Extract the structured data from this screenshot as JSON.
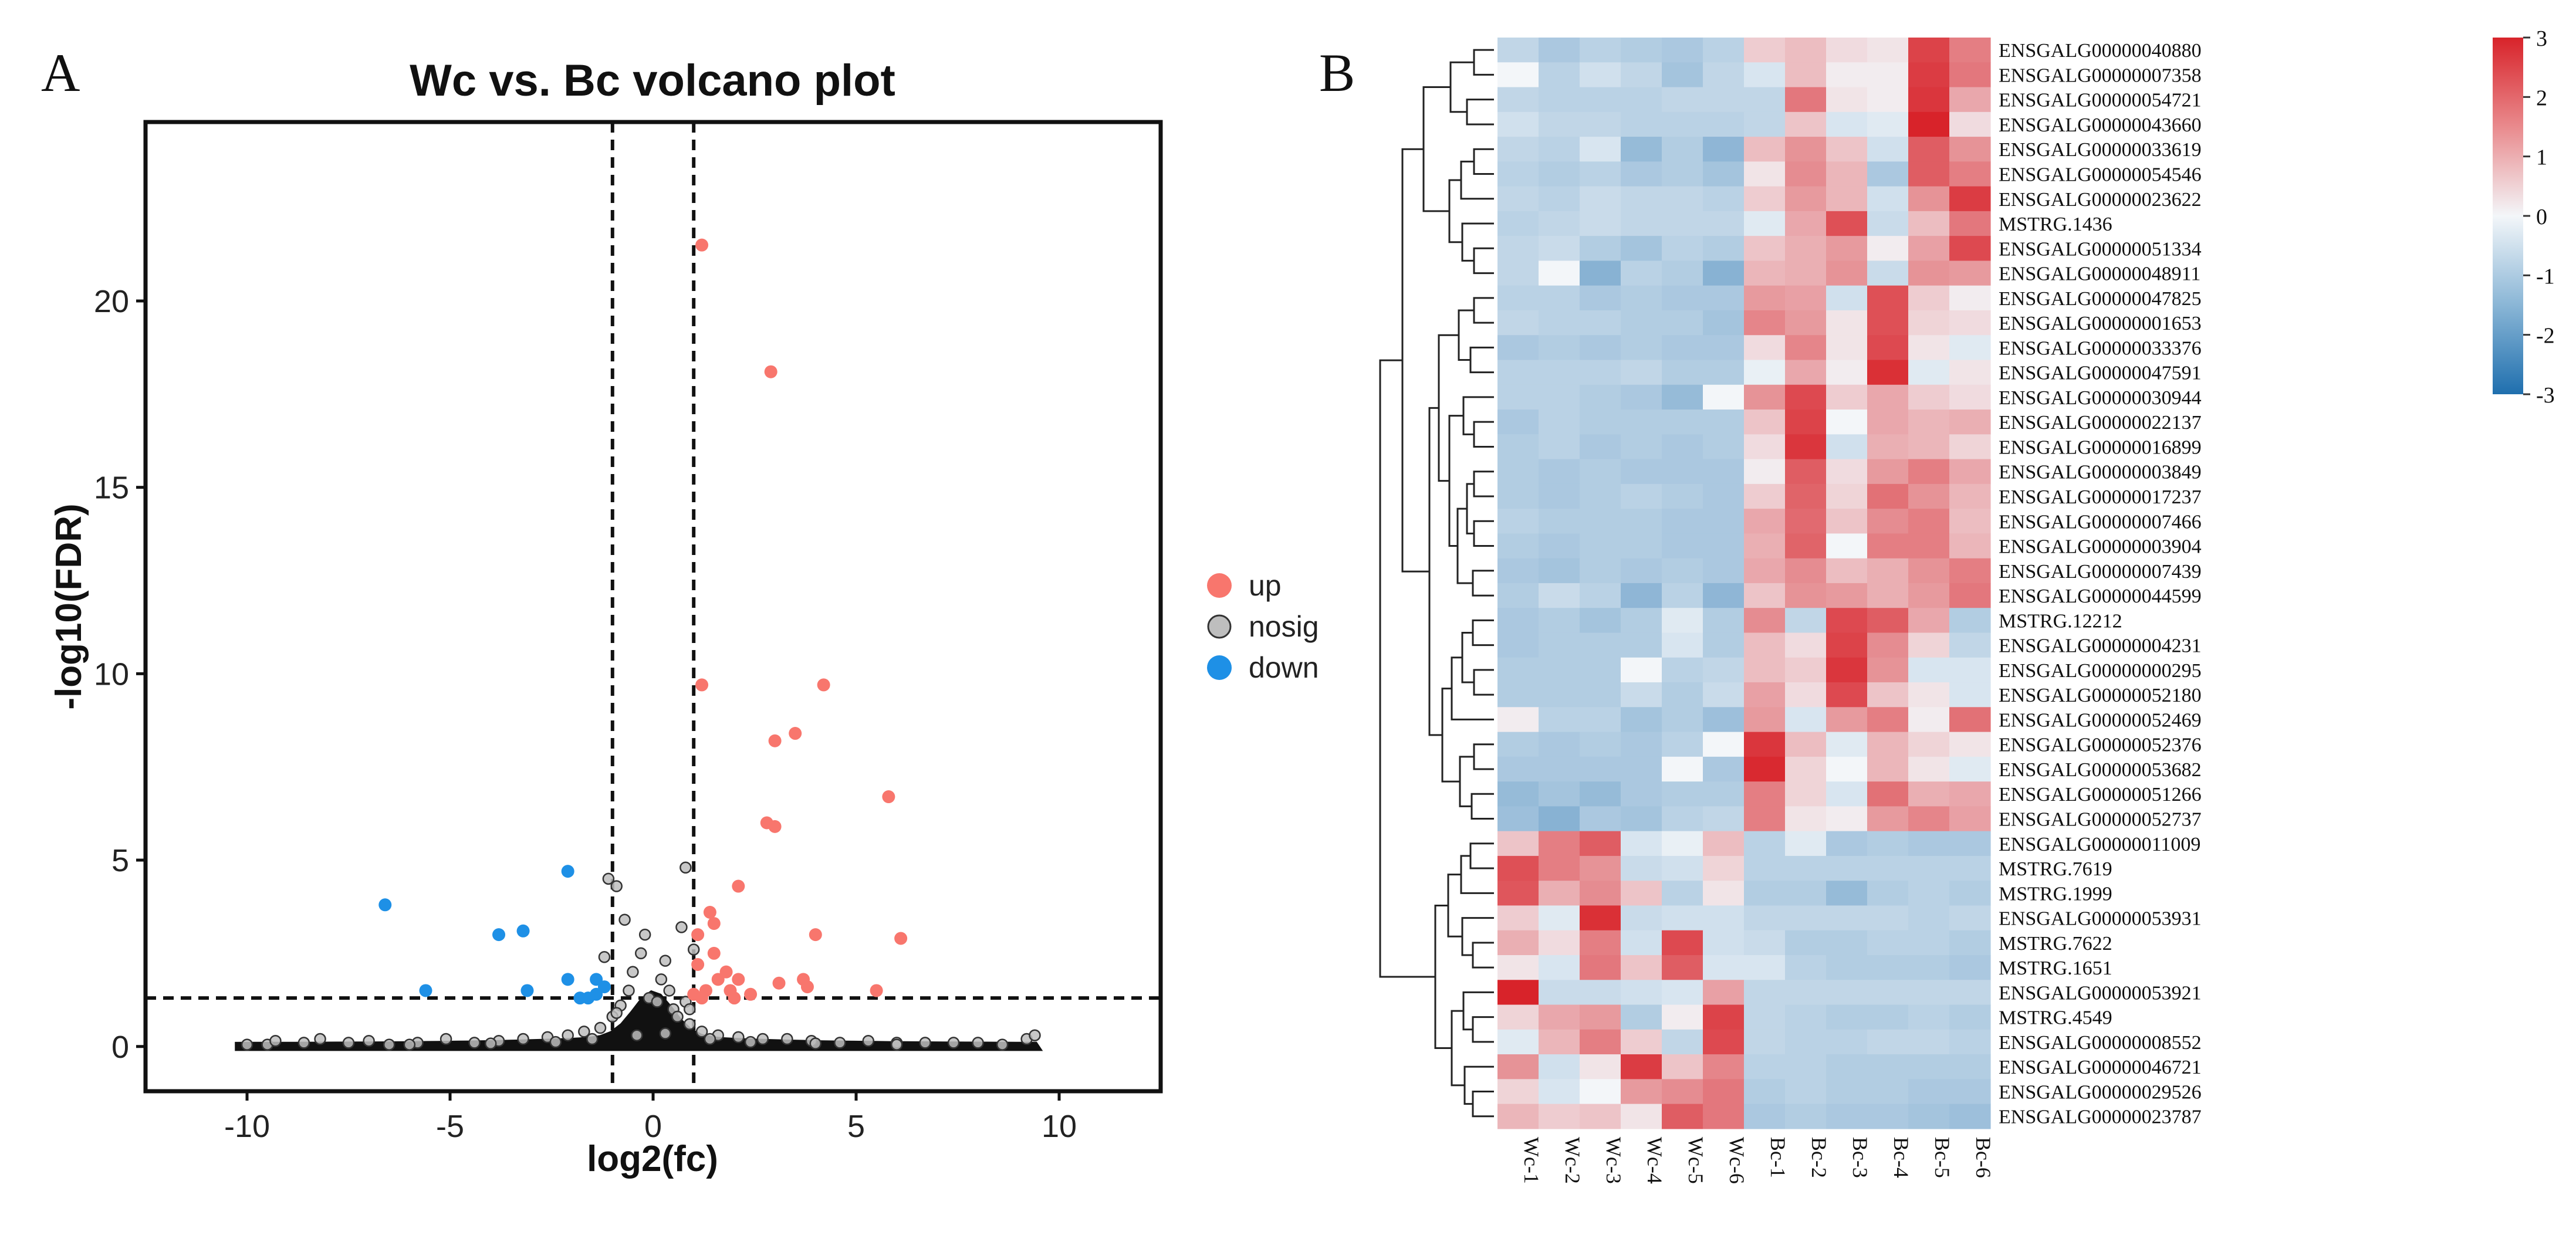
{
  "chart_data": [
    {
      "panel_label": "A",
      "type": "scatter",
      "title": "Wc vs. Bc volcano plot",
      "xlabel": "log2(fc)",
      "ylabel": "-log10(FDR)",
      "xlim": [
        -12.5,
        12.5
      ],
      "ylim": [
        -1.2,
        24.8
      ],
      "x_ticks": [
        -10,
        -5,
        0,
        5,
        10
      ],
      "x_tick_labels": [
        "-10",
        "-5",
        "0",
        "5",
        "10"
      ],
      "y_ticks": [
        0,
        5,
        10,
        15,
        20
      ],
      "y_tick_labels": [
        "0",
        "5",
        "10",
        "15",
        "20"
      ],
      "thresholds": {
        "log2fc": [
          -1,
          1
        ],
        "neg_log10_fdr": 1.3
      },
      "legend": {
        "position": "right",
        "entries": [
          {
            "key": "up",
            "label": "up",
            "color": "#F8766D"
          },
          {
            "key": "nosig",
            "label": "nosig",
            "color": "#BEBEBE"
          },
          {
            "key": "down",
            "label": "down",
            "color": "#1E90E6"
          }
        ]
      },
      "series": [
        {
          "name": "up",
          "color": "#F8766D",
          "points": [
            [
              1.2,
              21.5
            ],
            [
              2.9,
              18.1
            ],
            [
              1.2,
              9.7
            ],
            [
              4.2,
              9.7
            ],
            [
              3.5,
              8.4
            ],
            [
              3.0,
              8.2
            ],
            [
              5.8,
              6.7
            ],
            [
              2.8,
              6.0
            ],
            [
              3.0,
              5.9
            ],
            [
              2.1,
              4.3
            ],
            [
              1.4,
              3.6
            ],
            [
              1.5,
              3.3
            ],
            [
              1.1,
              3.0
            ],
            [
              4.0,
              3.0
            ],
            [
              6.1,
              2.9
            ],
            [
              1.5,
              2.5
            ],
            [
              1.1,
              2.2
            ],
            [
              1.8,
              2.0
            ],
            [
              3.7,
              1.8
            ],
            [
              3.8,
              1.6
            ],
            [
              3.1,
              1.7
            ],
            [
              2.1,
              1.8
            ],
            [
              1.6,
              1.8
            ],
            [
              1.3,
              1.5
            ],
            [
              5.5,
              1.5
            ],
            [
              1.9,
              1.5
            ],
            [
              1.2,
              1.3
            ],
            [
              2.4,
              1.4
            ],
            [
              2.0,
              1.3
            ],
            [
              1.0,
              1.4
            ]
          ]
        },
        {
          "name": "down",
          "color": "#1E90E6",
          "points": [
            [
              -6.6,
              3.8
            ],
            [
              -3.2,
              3.1
            ],
            [
              -3.8,
              3.0
            ],
            [
              -2.1,
              4.7
            ],
            [
              -5.6,
              1.5
            ],
            [
              -3.1,
              1.5
            ],
            [
              -2.1,
              1.8
            ],
            [
              -1.4,
              1.8
            ],
            [
              -1.6,
              1.3
            ],
            [
              -1.4,
              1.4
            ],
            [
              -1.8,
              1.3
            ],
            [
              -1.2,
              1.6
            ]
          ]
        },
        {
          "name": "nosig",
          "color": "#BEBEBE",
          "points": [
            [
              -10.0,
              0.05
            ],
            [
              -9.5,
              0.05
            ],
            [
              -9.3,
              0.15
            ],
            [
              -8.6,
              0.1
            ],
            [
              -8.2,
              0.2
            ],
            [
              -7.5,
              0.1
            ],
            [
              -7.0,
              0.15
            ],
            [
              -6.5,
              0.05
            ],
            [
              -5.8,
              0.1
            ],
            [
              -5.1,
              0.2
            ],
            [
              -4.4,
              0.1
            ],
            [
              -3.8,
              0.15
            ],
            [
              -3.2,
              0.2
            ],
            [
              -2.6,
              0.25
            ],
            [
              -2.1,
              0.3
            ],
            [
              -1.7,
              0.4
            ],
            [
              -1.3,
              0.5
            ],
            [
              -1.0,
              0.8
            ],
            [
              -0.8,
              1.1
            ],
            [
              -0.6,
              1.5
            ],
            [
              -0.5,
              2.0
            ],
            [
              -0.3,
              2.5
            ],
            [
              -0.2,
              3.0
            ],
            [
              -0.1,
              1.3
            ],
            [
              0.1,
              1.2
            ],
            [
              0.2,
              1.8
            ],
            [
              0.3,
              2.3
            ],
            [
              0.4,
              1.5
            ],
            [
              0.5,
              1.0
            ],
            [
              0.6,
              0.8
            ],
            [
              0.8,
              1.2
            ],
            [
              0.9,
              0.6
            ],
            [
              1.2,
              0.4
            ],
            [
              1.6,
              0.3
            ],
            [
              2.1,
              0.25
            ],
            [
              2.7,
              0.2
            ],
            [
              3.3,
              0.2
            ],
            [
              3.9,
              0.15
            ],
            [
              4.6,
              0.1
            ],
            [
              5.3,
              0.15
            ],
            [
              6.0,
              0.1
            ],
            [
              6.7,
              0.1
            ],
            [
              7.4,
              0.1
            ],
            [
              8.0,
              0.1
            ],
            [
              8.6,
              0.05
            ],
            [
              9.2,
              0.2
            ],
            [
              9.4,
              0.3
            ],
            [
              -1.1,
              4.5
            ],
            [
              -0.9,
              4.3
            ],
            [
              0.8,
              4.8
            ],
            [
              -0.7,
              3.4
            ],
            [
              0.7,
              3.2
            ],
            [
              -1.2,
              2.4
            ],
            [
              1.0,
              2.6
            ],
            [
              -0.4,
              0.3
            ],
            [
              0.3,
              0.35
            ],
            [
              -1.5,
              0.2
            ],
            [
              1.4,
              0.2
            ],
            [
              -2.4,
              0.12
            ],
            [
              2.4,
              0.12
            ],
            [
              -4.0,
              0.08
            ],
            [
              4.0,
              0.08
            ],
            [
              -6.0,
              0.05
            ],
            [
              6.0,
              0.05
            ],
            [
              -0.9,
              0.9
            ],
            [
              0.9,
              1.0
            ]
          ]
        }
      ]
    },
    {
      "panel_label": "B",
      "type": "heatmap",
      "columns": [
        "Wc-1",
        "Wc-2",
        "Wc-3",
        "Wc-4",
        "Wc-5",
        "Wc-6",
        "Bc-1",
        "Bc-2",
        "Bc-3",
        "Bc-4",
        "Bc-5",
        "Bc-6"
      ],
      "rows": [
        "ENSGALG00000040880",
        "ENSGALG00000007358",
        "ENSGALG00000054721",
        "ENSGALG00000043660",
        "ENSGALG00000033619",
        "ENSGALG00000054546",
        "ENSGALG00000023622",
        "MSTRG.1436",
        "ENSGALG00000051334",
        "ENSGALG00000048911",
        "ENSGALG00000047825",
        "ENSGALG00000001653",
        "ENSGALG00000033376",
        "ENSGALG00000047591",
        "ENSGALG00000030944",
        "ENSGALG00000022137",
        "ENSGALG00000016899",
        "ENSGALG00000003849",
        "ENSGALG00000017237",
        "ENSGALG00000007466",
        "ENSGALG00000003904",
        "ENSGALG00000007439",
        "ENSGALG00000044599",
        "MSTRG.12212",
        "ENSGALG00000004231",
        "ENSGALG00000000295",
        "ENSGALG00000052180",
        "ENSGALG00000052469",
        "ENSGALG00000052376",
        "ENSGALG00000053682",
        "ENSGALG00000051266",
        "ENSGALG00000052737",
        "ENSGALG00000011009",
        "MSTRG.7619",
        "MSTRG.1999",
        "ENSGALG00000053931",
        "MSTRG.7622",
        "MSTRG.1651",
        "ENSGALG00000053921",
        "MSTRG.4549",
        "ENSGALG00000008552",
        "ENSGALG00000046721",
        "ENSGALG00000029526",
        "ENSGALG00000023787"
      ],
      "values": [
        [
          -0.6,
          -0.9,
          -0.7,
          -0.8,
          -0.9,
          -0.7,
          0.5,
          0.7,
          0.3,
          0.2,
          2.5,
          1.6
        ],
        [
          0.0,
          -0.7,
          -0.4,
          -0.6,
          -1.0,
          -0.6,
          -0.3,
          0.7,
          0.1,
          0.1,
          2.6,
          1.7
        ],
        [
          -0.6,
          -0.7,
          -0.7,
          -0.7,
          -0.6,
          -0.6,
          -0.6,
          1.7,
          0.2,
          0.1,
          2.7,
          1.0
        ],
        [
          -0.4,
          -0.6,
          -0.6,
          -0.7,
          -0.7,
          -0.7,
          -0.6,
          0.6,
          -0.3,
          -0.2,
          3.0,
          0.3
        ],
        [
          -0.6,
          -0.7,
          -0.3,
          -1.2,
          -0.8,
          -1.3,
          0.7,
          1.3,
          0.6,
          -0.4,
          2.1,
          1.3
        ],
        [
          -0.7,
          -0.8,
          -0.7,
          -0.9,
          -0.8,
          -1.0,
          0.2,
          1.4,
          0.8,
          -0.9,
          2.1,
          1.6
        ],
        [
          -0.6,
          -0.7,
          -0.5,
          -0.6,
          -0.6,
          -0.7,
          0.5,
          1.2,
          0.8,
          -0.4,
          1.3,
          2.6
        ],
        [
          -0.7,
          -0.6,
          -0.5,
          -0.6,
          -0.6,
          -0.6,
          -0.2,
          1.0,
          2.3,
          -0.5,
          0.7,
          1.7
        ],
        [
          -0.6,
          -0.5,
          -0.8,
          -1.0,
          -0.7,
          -0.8,
          0.6,
          0.9,
          1.2,
          0.1,
          1.1,
          2.4
        ],
        [
          -0.6,
          0.0,
          -1.4,
          -0.7,
          -0.8,
          -1.4,
          0.8,
          0.9,
          1.3,
          -0.5,
          1.3,
          1.2
        ],
        [
          -0.7,
          -0.7,
          -0.9,
          -0.8,
          -0.9,
          -0.9,
          1.2,
          1.1,
          -0.4,
          2.3,
          0.5,
          0.1
        ],
        [
          -0.6,
          -0.7,
          -0.7,
          -0.8,
          -0.8,
          -1.0,
          1.5,
          1.2,
          0.2,
          2.3,
          0.4,
          0.3
        ],
        [
          -0.9,
          -0.8,
          -0.9,
          -0.8,
          -0.9,
          -0.9,
          0.3,
          1.5,
          0.2,
          2.4,
          0.2,
          -0.2
        ],
        [
          -0.7,
          -0.7,
          -0.7,
          -0.6,
          -0.8,
          -0.8,
          -0.1,
          1.0,
          0.1,
          2.8,
          -0.2,
          0.2
        ],
        [
          -0.7,
          -0.7,
          -0.8,
          -0.9,
          -1.2,
          0.0,
          1.3,
          2.4,
          0.5,
          1.0,
          0.5,
          0.3
        ],
        [
          -0.9,
          -0.7,
          -0.8,
          -0.8,
          -0.8,
          -0.8,
          0.6,
          2.5,
          0.0,
          1.0,
          0.8,
          0.9
        ],
        [
          -0.8,
          -0.7,
          -0.9,
          -0.8,
          -0.9,
          -0.8,
          0.3,
          2.7,
          -0.4,
          0.9,
          0.8,
          0.4
        ],
        [
          -0.8,
          -0.9,
          -0.8,
          -0.9,
          -0.9,
          -0.9,
          0.1,
          2.1,
          0.3,
          1.2,
          1.6,
          1.0
        ],
        [
          -0.8,
          -0.9,
          -0.8,
          -0.7,
          -0.8,
          -0.9,
          0.5,
          2.0,
          0.4,
          1.8,
          1.3,
          0.8
        ],
        [
          -0.7,
          -0.8,
          -0.8,
          -0.8,
          -0.9,
          -0.9,
          1.0,
          1.9,
          0.6,
          1.4,
          1.6,
          0.7
        ],
        [
          -0.8,
          -0.9,
          -0.8,
          -0.8,
          -0.9,
          -0.9,
          0.9,
          2.0,
          0.0,
          1.6,
          1.6,
          0.8
        ],
        [
          -0.9,
          -1.0,
          -0.8,
          -0.9,
          -0.8,
          -0.9,
          1.0,
          1.4,
          0.7,
          0.9,
          1.3,
          1.6
        ],
        [
          -0.8,
          -0.5,
          -0.7,
          -1.3,
          -0.7,
          -1.3,
          0.6,
          1.3,
          1.2,
          0.9,
          1.2,
          1.7
        ],
        [
          -0.9,
          -0.8,
          -1.0,
          -0.8,
          -0.2,
          -0.8,
          1.4,
          -0.6,
          2.4,
          2.1,
          1.0,
          -0.8
        ],
        [
          -0.9,
          -0.8,
          -0.8,
          -0.8,
          -0.3,
          -0.8,
          0.7,
          0.3,
          2.5,
          1.4,
          0.4,
          -0.6
        ],
        [
          -0.8,
          -0.8,
          -0.8,
          0.0,
          -0.7,
          -0.6,
          0.7,
          0.5,
          2.7,
          1.3,
          -0.3,
          -0.3
        ],
        [
          -0.8,
          -0.8,
          -0.8,
          -0.5,
          -0.8,
          -0.5,
          1.1,
          0.3,
          2.4,
          0.6,
          0.2,
          -0.3
        ],
        [
          0.1,
          -0.7,
          -0.7,
          -1.0,
          -0.8,
          -1.1,
          1.2,
          -0.3,
          1.2,
          1.6,
          0.1,
          1.8
        ],
        [
          -0.8,
          -0.9,
          -0.8,
          -0.9,
          -0.7,
          0.0,
          2.7,
          0.7,
          -0.2,
          0.8,
          0.4,
          0.2
        ],
        [
          -0.9,
          -0.9,
          -0.9,
          -0.9,
          0.0,
          -0.9,
          2.9,
          0.4,
          0.0,
          0.8,
          0.2,
          -0.2
        ],
        [
          -1.2,
          -1.0,
          -1.2,
          -0.9,
          -0.8,
          -0.8,
          1.6,
          0.4,
          -0.3,
          1.8,
          0.9,
          1.0
        ],
        [
          -1.1,
          -1.4,
          -0.9,
          -1.0,
          -0.7,
          -0.6,
          1.6,
          0.2,
          0.1,
          1.2,
          1.5,
          1.1
        ],
        [
          0.6,
          1.6,
          2.1,
          -0.3,
          -0.1,
          0.7,
          -0.7,
          -0.2,
          -0.9,
          -0.8,
          -0.9,
          -0.9
        ],
        [
          2.3,
          1.6,
          1.3,
          -0.5,
          -0.4,
          0.4,
          -0.7,
          -0.7,
          -0.7,
          -0.7,
          -0.7,
          -0.7
        ],
        [
          2.2,
          0.9,
          1.4,
          0.6,
          -0.7,
          0.2,
          -0.8,
          -0.8,
          -1.2,
          -0.8,
          -0.7,
          -0.8
        ],
        [
          0.5,
          -0.2,
          2.8,
          -0.5,
          -0.4,
          -0.4,
          -0.6,
          -0.6,
          -0.6,
          -0.6,
          -0.7,
          -0.6
        ],
        [
          0.9,
          0.3,
          1.6,
          -0.4,
          2.4,
          -0.4,
          -0.5,
          -0.8,
          -0.8,
          -0.7,
          -0.7,
          -0.8
        ],
        [
          0.2,
          -0.3,
          1.7,
          0.6,
          2.1,
          -0.3,
          -0.3,
          -0.7,
          -0.8,
          -0.8,
          -0.8,
          -0.9
        ],
        [
          3.0,
          -0.5,
          -0.5,
          -0.4,
          -0.3,
          1.1,
          -0.6,
          -0.6,
          -0.6,
          -0.6,
          -0.6,
          -0.6
        ],
        [
          0.4,
          1.0,
          1.2,
          -0.8,
          0.1,
          2.5,
          -0.6,
          -0.7,
          -0.8,
          -0.8,
          -0.7,
          -0.8
        ],
        [
          -0.2,
          0.8,
          1.6,
          0.5,
          -0.6,
          2.4,
          -0.6,
          -0.7,
          -0.7,
          -0.6,
          -0.6,
          -0.7
        ],
        [
          1.3,
          -0.4,
          0.2,
          2.6,
          0.6,
          1.5,
          -0.7,
          -0.7,
          -0.8,
          -0.8,
          -0.8,
          -0.8
        ],
        [
          0.4,
          -0.3,
          0.0,
          1.2,
          1.4,
          1.7,
          -0.8,
          -0.7,
          -0.8,
          -0.8,
          -0.9,
          -0.9
        ],
        [
          0.8,
          0.5,
          0.6,
          0.2,
          2.1,
          1.7,
          -0.9,
          -0.8,
          -0.9,
          -0.9,
          -1.0,
          -1.1
        ]
      ],
      "color_scale": {
        "min": -3,
        "max": 3,
        "ticks": [
          3,
          2,
          1,
          0,
          -1,
          -2,
          -3
        ],
        "tick_labels": [
          "3",
          "2",
          "1",
          "0",
          "-1",
          "-2",
          "-3"
        ],
        "low_color": "#1F6FAE",
        "mid_color": "#F3F6F9",
        "high_color": "#D8232A"
      }
    }
  ]
}
